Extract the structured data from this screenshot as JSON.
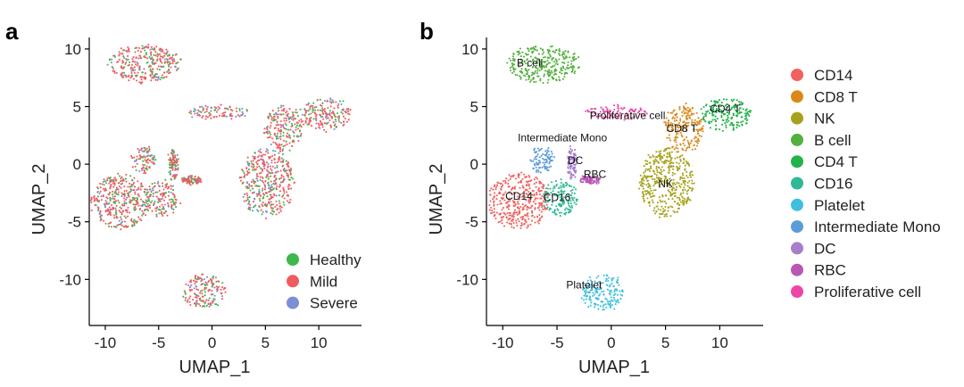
{
  "figure": {
    "panel_a_letter": "a",
    "panel_b_letter": "b"
  },
  "chart_data": [
    {
      "type": "scatter",
      "title": "",
      "xlabel": "UMAP_1",
      "ylabel": "UMAP_2",
      "xlim": [
        -11.5,
        14
      ],
      "ylim": [
        -14,
        11
      ],
      "xticks": [
        -10,
        -5,
        0,
        5,
        10
      ],
      "yticks": [
        -10,
        -5,
        0,
        5,
        10
      ],
      "grid": false,
      "legend_position": "bottom-right",
      "color_by": "condition",
      "series": [
        {
          "name": "Healthy",
          "color": "#3DB94A"
        },
        {
          "name": "Mild",
          "color": "#EF5B5F"
        },
        {
          "name": "Severe",
          "color": "#7B8FD4"
        }
      ],
      "point_order": [
        "Mild",
        "Healthy",
        "Severe"
      ]
    },
    {
      "type": "scatter",
      "title": "",
      "xlabel": "UMAP_1",
      "ylabel": "UMAP_2",
      "xlim": [
        -11.5,
        14
      ],
      "ylim": [
        -14,
        11
      ],
      "xticks": [
        -10,
        -5,
        0,
        5,
        10
      ],
      "yticks": [
        -10,
        -5,
        0,
        5,
        10
      ],
      "grid": false,
      "legend_position": "right",
      "color_by": "cell type",
      "series": [
        {
          "name": "CD14",
          "color": "#F0625F"
        },
        {
          "name": "CD8 T",
          "color": "#D8891B"
        },
        {
          "name": "NK",
          "color": "#A6A21E"
        },
        {
          "name": "B cell",
          "color": "#55B03F"
        },
        {
          "name": "CD4 T",
          "color": "#23B24B"
        },
        {
          "name": "CD16",
          "color": "#2FB895"
        },
        {
          "name": "Platelet",
          "color": "#3EBFDE"
        },
        {
          "name": "Intermediate Mono",
          "color": "#5B9BD8"
        },
        {
          "name": "DC",
          "color": "#A77FC9"
        },
        {
          "name": "RBC",
          "color": "#B857B4"
        },
        {
          "name": "Proliferative cell",
          "color": "#ED46A9"
        }
      ],
      "annotations": [
        {
          "text": "B cell",
          "x": -7.5,
          "y": 8.5
        },
        {
          "text": "Proliferative cell",
          "x": 1.5,
          "y": 3.9
        },
        {
          "text": "CD4 T",
          "x": 10.5,
          "y": 4.5
        },
        {
          "text": "CD8 T",
          "x": 6.5,
          "y": 2.8
        },
        {
          "text": "Intermediate Mono",
          "x": -4.5,
          "y": 2.0
        },
        {
          "text": "DC",
          "x": -3.3,
          "y": 0.0
        },
        {
          "text": "RBC",
          "x": -1.5,
          "y": -1.2
        },
        {
          "text": "NK",
          "x": 5.0,
          "y": -2.0
        },
        {
          "text": "CD14",
          "x": -8.5,
          "y": -3.1
        },
        {
          "text": "CD16",
          "x": -5.0,
          "y": -3.2
        },
        {
          "text": "Platelet",
          "x": -2.5,
          "y": -10.8
        }
      ],
      "clusters": [
        {
          "label": "B cell",
          "cx": -6.3,
          "cy": 8.7,
          "rx": 3.4,
          "ry": 1.6
        },
        {
          "label": "CD14",
          "cx": -8.5,
          "cy": -3.2,
          "rx": 2.8,
          "ry": 2.4
        },
        {
          "label": "CD16",
          "cx": -4.7,
          "cy": -3.0,
          "rx": 1.6,
          "ry": 1.6
        },
        {
          "label": "Intermediate Mono",
          "cx": -6.4,
          "cy": 0.4,
          "rx": 1.1,
          "ry": 1.2
        },
        {
          "label": "DC",
          "cx": -3.6,
          "cy": 0.0,
          "rx": 0.4,
          "ry": 1.4
        },
        {
          "label": "RBC",
          "cx": -2.0,
          "cy": -1.4,
          "rx": 1.0,
          "ry": 0.3
        },
        {
          "label": "Proliferative cell",
          "cx": 0.5,
          "cy": 4.5,
          "rx": 2.9,
          "ry": 0.6
        },
        {
          "label": "CD8 T",
          "cx": 6.7,
          "cy": 3.1,
          "rx": 1.8,
          "ry": 2.0
        },
        {
          "label": "CD4 T",
          "cx": 10.6,
          "cy": 4.3,
          "rx": 2.4,
          "ry": 1.4
        },
        {
          "label": "NK",
          "cx": 5.1,
          "cy": -1.6,
          "rx": 2.5,
          "ry": 3.0
        },
        {
          "label": "Platelet",
          "cx": -0.8,
          "cy": -11.1,
          "rx": 2.0,
          "ry": 1.5
        }
      ]
    }
  ]
}
